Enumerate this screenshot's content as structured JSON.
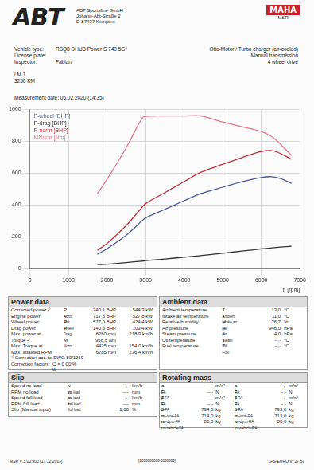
{
  "header": {
    "logo": "ABT",
    "company": [
      "ABT Sportsline GmbH",
      "Johann-Abt-Straße 2",
      "D-87437 Kempten"
    ],
    "maha": {
      "logo": "MAHA",
      "sub": "MSR"
    }
  },
  "vehicle": [
    {
      "label": "Vehicle type:",
      "value": "RSQ8 DHUB Power S 740 5G*"
    },
    {
      "label": "License plate:"
    },
    {
      "label": "Inspector:",
      "value": "Fabian"
    }
  ],
  "engine": [
    "Otto-Motor / Turbo charger (air-cooled)",
    "Manual transmission",
    "4 wheel drive"
  ],
  "notes": [
    "LM 1",
    "3250 KM"
  ],
  "measurement_date": "Measurement date: 06.02.2020 (14:35)",
  "chart_data": {
    "type": "line",
    "x_label": "n [rpm]",
    "x": [
      1750,
      2000,
      2500,
      2900,
      3000,
      3500,
      4000,
      4425,
      5000,
      5500,
      6000,
      6280,
      6500,
      6785
    ],
    "xlim": [
      0,
      7000
    ],
    "xticks": [
      0,
      1000,
      2000,
      3000,
      4000,
      5000,
      6000,
      7000
    ],
    "ylim": [
      0,
      1000
    ],
    "yticks": [
      0,
      200,
      400,
      600,
      800,
      1000
    ],
    "grid": true,
    "legend": "upper left",
    "series": [
      {
        "name": "P-wheel [BHP]",
        "color": "#4a5a9a",
        "values": [
          90,
          125,
          210,
          298,
          318,
          372,
          426,
          470,
          511,
          545,
          572,
          577,
          565,
          535
        ]
      },
      {
        "name": "P-drag [BHP]",
        "color": "#333333",
        "values": [
          25,
          28,
          38,
          47,
          50,
          60,
          72,
          82,
          97,
          110,
          124,
          130,
          135,
          140.6
        ]
      },
      {
        "name": "P-norm [BHP]",
        "color": "#c0303a",
        "values": [
          115,
          157,
          271,
          382,
          408,
          477,
          546,
          604,
          655,
          697,
          735,
          740.1,
          722,
          686
        ]
      },
      {
        "name": "MNorm [Nm]",
        "color": "#e07888",
        "values": [
          470,
          560,
          760,
          940,
          955,
          958,
          958,
          958.5,
          920,
          890,
          860,
          827,
          780,
          710
        ]
      }
    ]
  },
  "power_data": {
    "title": "Power data",
    "rows": [
      {
        "label": "Corrected power ¹⁾",
        "symbol": [
          "P",
          "Norm"
        ],
        "value": "740,1 BHP",
        "value2": "544,3 kW"
      },
      {
        "label": "Engine power",
        "symbol": [
          "P",
          "Mot"
        ],
        "value": "717,6 BHP",
        "value2": "527,8 kW"
      },
      {
        "label": "Wheel power",
        "symbol": [
          "P",
          "Wheel"
        ],
        "value": "577,0 BHP",
        "value2": "424,4 kW"
      },
      {
        "label": "Drag power",
        "symbol": [
          "P",
          "Drag"
        ],
        "value": "140,6 BHP",
        "value2": "103,4 kW"
      },
      {
        "label": "Max. power at",
        "value": "6280 rpm",
        "value2": "218,9 km/h"
      },
      {
        "label": "Torque ¹⁾",
        "symbol": [
          "M",
          "Norm"
        ],
        "value": "958,5 Nm"
      },
      {
        "label": "Max. Torque at",
        "value": "4425 rpm",
        "value2": "154,0 km/h"
      },
      {
        "label": "Max. attained RPM",
        "value": "6785 rpm",
        "value2": "236,4 km/h"
      }
    ],
    "footnotes": [
      {
        "text": "¹⁾ Correction acc. to EWG 80/1269"
      },
      {
        "text": "Correction factors:",
        "symbol": [
          "C",
          "W"
        ],
        "value": "= 0,00 %"
      }
    ]
  },
  "ambient_data": {
    "title": "Ambient data",
    "rows": [
      {
        "label": "Ambient temperature",
        "symbol": [
          "T",
          "Ambient"
        ],
        "value": "13,0",
        "unit": "°C"
      },
      {
        "label": "Intake air temperature",
        "symbol": [
          "T",
          "Intake air"
        ],
        "value": "11,0",
        "unit": "°C"
      },
      {
        "label": "Relative humidity",
        "symbol": [
          "H",
          "Rel"
        ],
        "value": "26,7",
        "unit": "%"
      },
      {
        "label": "Air pressure",
        "symbol": [
          "p",
          "Air"
        ],
        "value": "946,0",
        "unit": "hPa"
      },
      {
        "label": "Steam pressure",
        "symbol": [
          "p",
          "Steam"
        ],
        "value": "4,0",
        "unit": "hPa"
      },
      {
        "label": "Oil temperature",
        "symbol": [
          "T",
          "Oil"
        ],
        "value": "--,-",
        "unit": "°C"
      },
      {
        "label": "Fuel temperature",
        "symbol": [
          "T",
          "Fuel"
        ],
        "value": "--,-",
        "unit": "°C"
      }
    ]
  },
  "slip": {
    "title": "Slip",
    "rows": [
      {
        "label": "Speed no load",
        "symbol": [
          "v",
          "no load"
        ],
        "value": "---,-",
        "unit": "km/h"
      },
      {
        "label": "RPM no load",
        "symbol": [
          "n",
          "no load"
        ],
        "value": "----",
        "unit": "rpm"
      },
      {
        "label": "Speed full load",
        "symbol": [
          "v",
          "full load"
        ],
        "value": "---,-",
        "unit": "km/h"
      },
      {
        "label": "RPM full load",
        "symbol": [
          "n",
          "full load"
        ],
        "value": "----",
        "unit": "rpm"
      },
      {
        "label": "Slip (Manual input)",
        "value": "1,00",
        "unit": "%"
      }
    ]
  },
  "rotating_mass": {
    "title": "Rotating mass",
    "columns": [
      [
        {
          "symbol": [
            "a",
            "FA"
          ],
          "value": "--,-",
          "unit": "m/s²"
        },
        {
          "symbol": [
            "F",
            "Z-FA"
          ],
          "value": "--,-",
          "unit": "N"
        },
        {
          "symbol": [
            "β",
            "FA"
          ],
          "value": "--,-",
          "unit": "m/s²"
        },
        {
          "symbol": [
            "F",
            "B-FA"
          ],
          "value": "--,-",
          "unit": "N"
        },
        {
          "symbol": [
            "m",
            "rot-total-FA"
          ],
          "value": "794,0",
          "unit": "kg"
        },
        {
          "symbol": [
            "m",
            "rot-dyno-FA"
          ],
          "value": "714,0",
          "unit": "kg"
        },
        {
          "symbol": [
            "m",
            "rot-vehicle-FA"
          ],
          "value": "80,0",
          "unit": "kg"
        }
      ],
      [
        {
          "symbol": [
            "a",
            "RA"
          ],
          "value": "--,-",
          "unit": "m/s²"
        },
        {
          "symbol": [
            "F",
            "Z-RA"
          ],
          "value": "--,-",
          "unit": "N"
        },
        {
          "symbol": [
            "β",
            "RA"
          ],
          "value": "--,-",
          "unit": "m/s²"
        },
        {
          "symbol": [
            "F",
            "B-RA"
          ],
          "value": "--,-",
          "unit": "N"
        },
        {
          "symbol": [
            "m",
            "rot-total-RA"
          ],
          "value": "793,0",
          "unit": "kg"
        },
        {
          "symbol": [
            "m",
            "rot-dyno-RA"
          ],
          "value": "713,0",
          "unit": "kg"
        },
        {
          "symbol": [
            "m",
            "rot-vehicle-RA"
          ],
          "value": "80,0",
          "unit": "kg"
        }
      ]
    ]
  },
  "footer": [
    "MSR V 3.00.900 (17.12.2013)",
    "[1000000000-0000000]",
    "LPS-EURO VI 27.51"
  ]
}
